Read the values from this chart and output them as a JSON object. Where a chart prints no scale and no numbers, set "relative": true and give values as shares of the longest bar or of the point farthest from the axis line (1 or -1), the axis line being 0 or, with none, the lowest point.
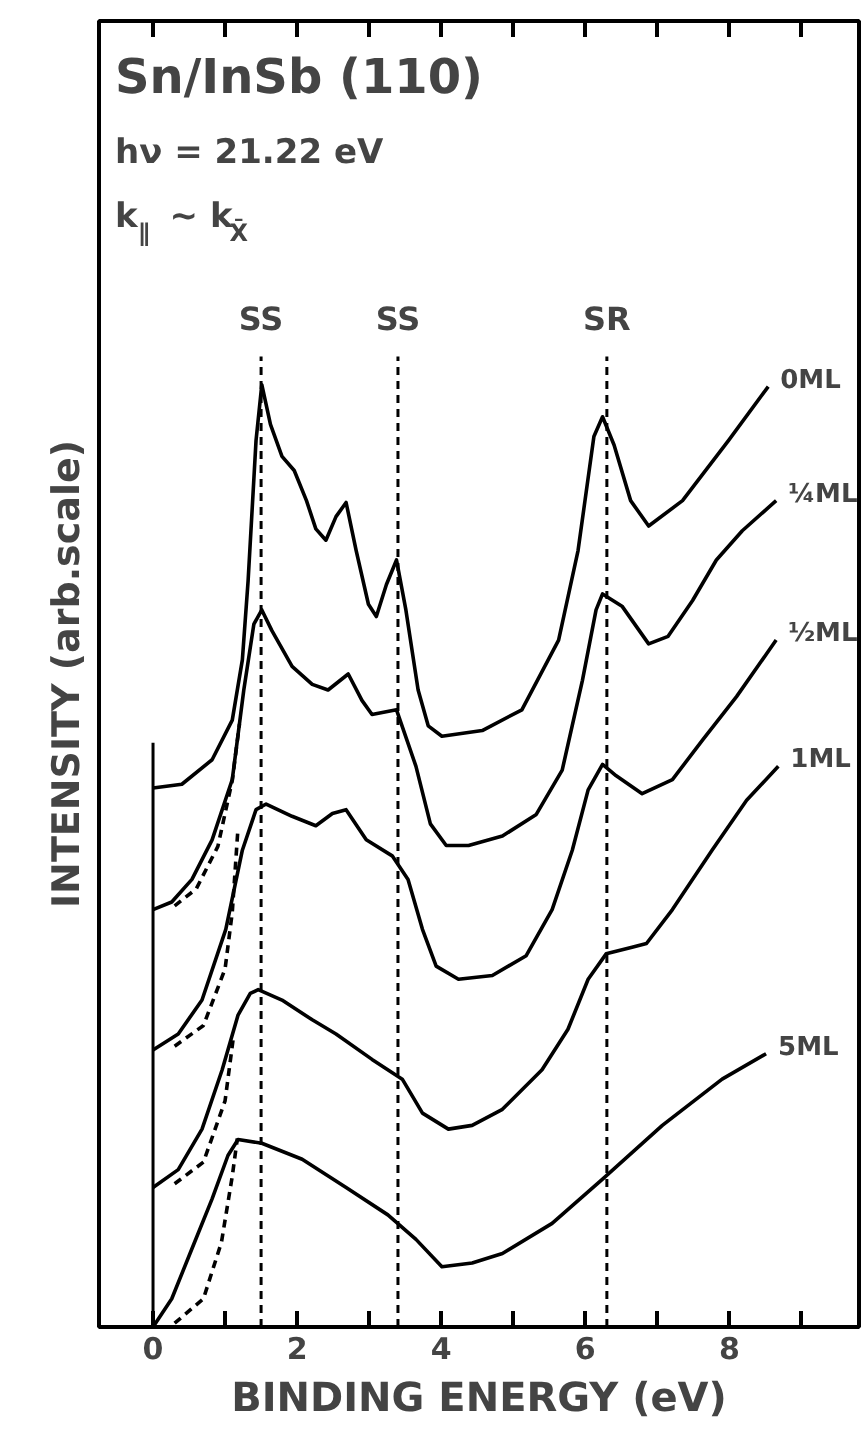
{
  "chart_data": {
    "type": "line",
    "title": "Sn/InSb (110)",
    "xlabel": "BINDING ENERGY (eV)",
    "ylabel": "INTENSITY (arb.scale)",
    "relative": true,
    "annotations": [
      "hν = 21.22 eV",
      "k$_{∥}$ ~ k$_{X̄}$"
    ],
    "xlim": [
      -0.75,
      9.8
    ],
    "xticks": [
      0,
      {
        "value": 1,
        "label": null
      },
      2,
      {
        "value": 3,
        "label": null
      },
      4,
      {
        "value": 5,
        "label": null
      },
      6,
      {
        "value": 7,
        "label": null
      },
      8,
      {
        "value": 9,
        "label": null
      }
    ],
    "line_style": "solid",
    "series": [
      {
        "name": "0ML",
        "color": "#000000",
        "x": [
          0,
          0.4,
          0.82,
          1.1,
          1.24,
          1.32,
          1.43,
          1.51,
          1.63,
          1.79,
          1.96,
          2.13,
          2.26,
          2.4,
          2.54,
          2.68,
          2.82,
          2.99,
          3.1,
          3.24,
          3.38,
          3.51,
          3.68,
          3.82,
          4.01,
          4.57,
          5.12,
          5.63,
          5.9,
          6.12,
          6.24,
          6.4,
          6.63,
          6.88,
          7.35,
          7.99,
          8.54
        ],
        "values": [
          0.572,
          0.576,
          0.602,
          0.644,
          0.708,
          0.792,
          0.941,
          1.0,
          0.958,
          0.924,
          0.909,
          0.877,
          0.847,
          0.835,
          0.86,
          0.875,
          0.824,
          0.767,
          0.754,
          0.788,
          0.814,
          0.761,
          0.676,
          0.638,
          0.627,
          0.633,
          0.655,
          0.729,
          0.824,
          0.945,
          0.966,
          0.936,
          0.877,
          0.85,
          0.877,
          0.941,
          0.998
        ]
      },
      {
        "name": "¼ML",
        "color": "#000000",
        "x": [
          0,
          0.26,
          0.54,
          0.82,
          1.1,
          1.26,
          1.4,
          1.51,
          1.65,
          1.93,
          2.21,
          2.43,
          2.71,
          2.9,
          3.04,
          3.38,
          3.65,
          3.85,
          4.07,
          4.38,
          4.85,
          5.32,
          5.68,
          5.96,
          6.15,
          6.24,
          6.51,
          6.88,
          7.15,
          7.49,
          7.82,
          8.18,
          8.65
        ],
        "values": [
          0.443,
          0.451,
          0.475,
          0.517,
          0.581,
          0.676,
          0.746,
          0.761,
          0.739,
          0.701,
          0.682,
          0.676,
          0.693,
          0.665,
          0.65,
          0.655,
          0.595,
          0.534,
          0.511,
          0.511,
          0.521,
          0.544,
          0.591,
          0.686,
          0.761,
          0.778,
          0.765,
          0.725,
          0.733,
          0.771,
          0.814,
          0.845,
          0.877
        ]
      },
      {
        "name": "½ML",
        "color": "#000000",
        "x": [
          0,
          0.35,
          0.68,
          1.01,
          1.24,
          1.43,
          1.57,
          1.93,
          2.26,
          2.49,
          2.68,
          2.96,
          3.32,
          3.54,
          3.74,
          3.93,
          4.24,
          4.71,
          5.18,
          5.54,
          5.82,
          6.04,
          6.24,
          6.43,
          6.79,
          7.21,
          7.63,
          8.1,
          8.65
        ],
        "values": [
          0.294,
          0.311,
          0.347,
          0.422,
          0.506,
          0.549,
          0.555,
          0.542,
          0.532,
          0.545,
          0.549,
          0.517,
          0.5,
          0.475,
          0.422,
          0.383,
          0.369,
          0.373,
          0.394,
          0.443,
          0.506,
          0.57,
          0.597,
          0.585,
          0.566,
          0.581,
          0.623,
          0.669,
          0.729
        ]
      },
      {
        "name": "1ML",
        "color": "#000000",
        "x": [
          0,
          0.35,
          0.68,
          0.96,
          1.18,
          1.35,
          1.46,
          1.79,
          2.21,
          2.54,
          3.04,
          3.46,
          3.74,
          4.1,
          4.43,
          4.85,
          5.4,
          5.76,
          6.04,
          6.29,
          6.65,
          6.85,
          7.21,
          7.76,
          8.24,
          8.68
        ],
        "values": [
          0.148,
          0.167,
          0.21,
          0.273,
          0.331,
          0.354,
          0.358,
          0.347,
          0.326,
          0.311,
          0.284,
          0.263,
          0.227,
          0.21,
          0.214,
          0.231,
          0.273,
          0.316,
          0.369,
          0.396,
          0.403,
          0.407,
          0.443,
          0.506,
          0.559,
          0.595
        ]
      },
      {
        "name": "5ML",
        "color": "#000000",
        "x": [
          0,
          0.26,
          0.54,
          0.82,
          1.04,
          1.18,
          1.51,
          2.07,
          2.68,
          3.26,
          3.65,
          4.01,
          4.43,
          4.85,
          5.54,
          6.24,
          7.07,
          7.9,
          8.51
        ],
        "values": [
          0.0,
          0.03,
          0.083,
          0.136,
          0.182,
          0.199,
          0.195,
          0.178,
          0.148,
          0.119,
          0.093,
          0.064,
          0.068,
          0.078,
          0.11,
          0.157,
          0.214,
          0.263,
          0.29
        ]
      },
      {
        "color": "#000000",
        "line_style": "dashed",
        "x": [
          0.3,
          0.6,
          0.9,
          1.1,
          1.2
        ],
        "values": [
          0.447,
          0.465,
          0.51,
          0.58,
          0.64
        ]
      },
      {
        "color": "#000000",
        "line_style": "dashed",
        "x": [
          0.3,
          0.7,
          1.0,
          1.1,
          1.18
        ],
        "values": [
          0.298,
          0.32,
          0.38,
          0.44,
          0.53
        ]
      },
      {
        "color": "#000000",
        "line_style": "dashed",
        "x": [
          0.3,
          0.7,
          1.0,
          1.12
        ],
        "values": [
          0.152,
          0.175,
          0.24,
          0.31
        ]
      },
      {
        "color": "#000000",
        "line_style": "dashed",
        "x": [
          0.3,
          0.7,
          0.95,
          1.1,
          1.17
        ],
        "values": [
          0.004,
          0.03,
          0.09,
          0.16,
          0.2
        ]
      }
    ],
    "ref_lines": [
      {
        "axis": "x",
        "value": 0,
        "line_style": "solid"
      },
      {
        "axis": "x",
        "value": 1.5,
        "label": "SS",
        "line_style": "dashed"
      },
      {
        "axis": "x",
        "value": 3.4,
        "label": "SS",
        "line_style": "dashed"
      },
      {
        "axis": "x",
        "value": 6.3,
        "label": "SR",
        "line_style": "dashed"
      }
    ]
  }
}
